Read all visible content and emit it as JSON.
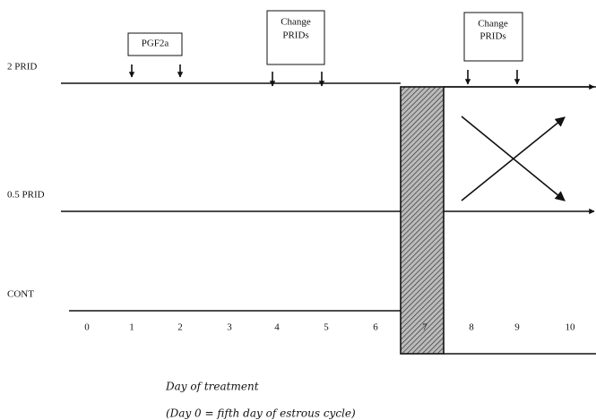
{
  "rows": [
    "2 PRID",
    "0.5 PRID",
    "CONT"
  ],
  "days": [
    0,
    1,
    2,
    3,
    4,
    5,
    6,
    7,
    8,
    9,
    10
  ],
  "boxes": [
    {
      "lines": [
        "PGF2a"
      ]
    },
    {
      "lines": [
        "Change",
        "PRIDs"
      ]
    },
    {
      "lines": [
        "Change",
        "PRIDs"
      ]
    }
  ],
  "caption": [
    "Day of treatment",
    "(Day 0 = fifth day of estrous cycle)"
  ]
}
